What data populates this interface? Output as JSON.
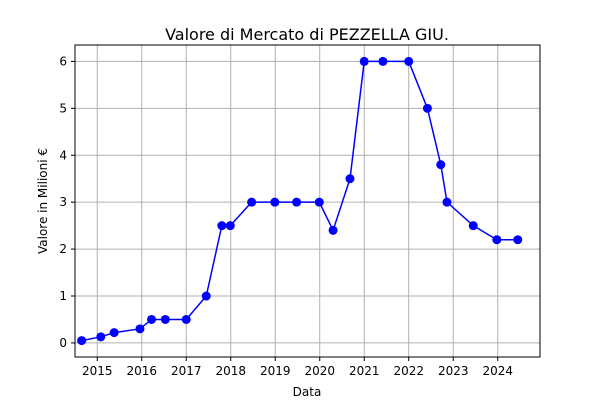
{
  "chart_data": {
    "type": "line",
    "title": "Valore di Mercato di PEZZELLA GIU.",
    "xlabel": "Data",
    "ylabel": "Valore in Milioni €",
    "x_ticks": [
      "2015",
      "2016",
      "2017",
      "2018",
      "2019",
      "2020",
      "2021",
      "2022",
      "2023",
      "2024"
    ],
    "y_ticks": [
      "0",
      "1",
      "2",
      "3",
      "4",
      "5",
      "6"
    ],
    "xlim": [
      2014.5,
      2024.95
    ],
    "ylim": [
      -0.3,
      6.35
    ],
    "grid": true,
    "series": [
      {
        "color": "#0000ff",
        "x": [
          2014.65,
          2015.08,
          2015.38,
          2015.96,
          2016.22,
          2016.53,
          2017.0,
          2017.45,
          2017.8,
          2017.99,
          2018.47,
          2018.99,
          2019.48,
          2019.99,
          2020.3,
          2020.68,
          2021.0,
          2021.42,
          2022.0,
          2022.42,
          2022.72,
          2022.86,
          2023.45,
          2023.98,
          2024.45
        ],
        "y": [
          0.05,
          0.13,
          0.22,
          0.3,
          0.5,
          0.5,
          0.5,
          1.0,
          2.5,
          2.5,
          3.0,
          3.0,
          3.0,
          3.0,
          2.4,
          3.5,
          6.0,
          6.0,
          6.0,
          5.0,
          3.8,
          3.0,
          2.5,
          2.2,
          2.2
        ]
      }
    ]
  }
}
